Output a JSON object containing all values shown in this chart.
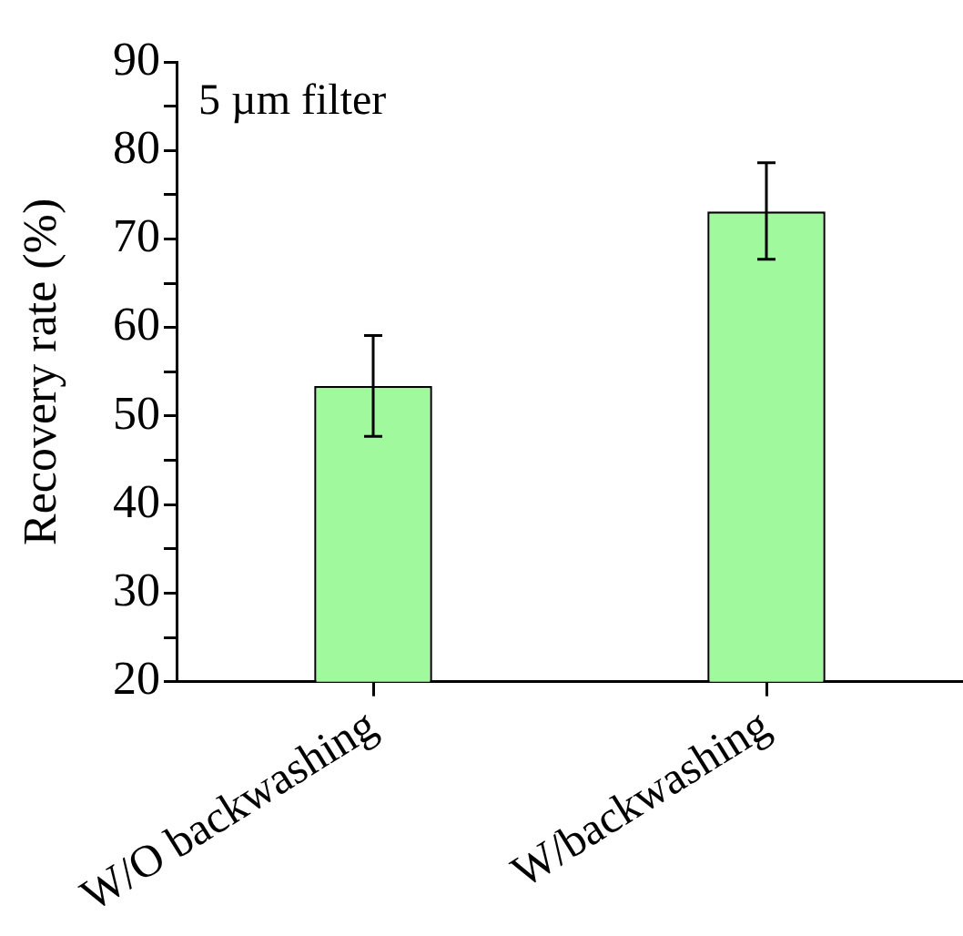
{
  "chart_data": {
    "type": "bar",
    "ylabel": "Recovery rate (%)",
    "annotations": [
      "5 µm filter"
    ],
    "categories": [
      "W/O backwashing",
      "W/backwashing"
    ],
    "series": [
      {
        "color": "#a0f99c",
        "values": [
          53.4,
          73.1
        ],
        "errors": [
          [
            47.7,
            59.1
          ],
          [
            67.7,
            78.6
          ]
        ]
      }
    ],
    "ylim": [
      20,
      90
    ],
    "yticks": [
      20,
      {
        "value": 25,
        "label": null
      },
      30,
      {
        "value": 35,
        "label": null
      },
      40,
      {
        "value": 45,
        "label": null
      },
      50,
      {
        "value": 55,
        "label": null
      },
      60,
      {
        "value": 65,
        "label": null
      },
      70,
      {
        "value": 75,
        "label": null
      },
      80,
      {
        "value": 85,
        "label": null
      },
      90
    ],
    "grid": false,
    "legend": false
  }
}
